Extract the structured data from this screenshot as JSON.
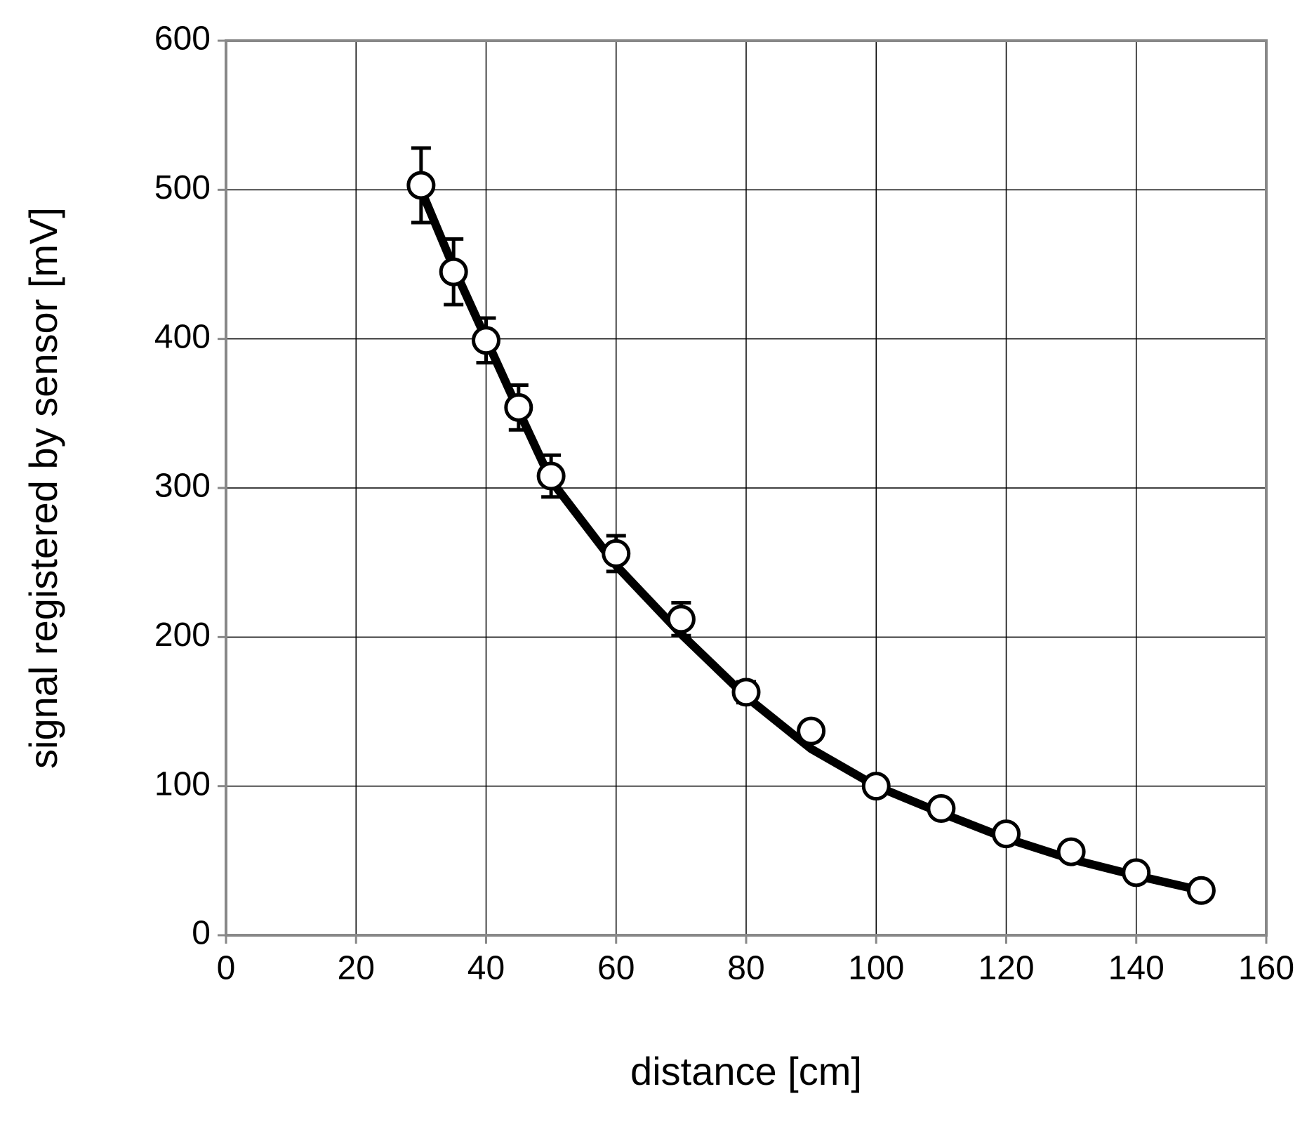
{
  "chart_data": {
    "type": "line",
    "x_label": "distance [cm]",
    "y_label": "signal registered by sensor [mV]",
    "x": [
      30,
      35,
      40,
      45,
      50,
      60,
      70,
      80,
      90,
      100,
      110,
      120,
      130,
      140,
      150
    ],
    "series": [
      {
        "color": "#000000",
        "style": "line",
        "values": [
          500,
          448,
          400,
          352,
          305,
          248,
          202,
          160,
          125,
          100,
          82,
          65,
          51,
          40,
          30
        ]
      },
      {
        "color": "#000000",
        "style": "marker",
        "values": [
          503,
          445,
          399,
          354,
          308,
          256,
          212,
          163,
          137,
          100,
          85,
          68,
          56,
          42,
          30
        ],
        "errors": [
          25,
          22,
          15,
          15,
          14,
          12,
          11,
          7,
          5,
          2,
          2,
          2,
          2,
          2,
          2
        ]
      }
    ],
    "xlim": [
      0,
      160
    ],
    "xticks": [
      0,
      20,
      40,
      60,
      80,
      100,
      120,
      140,
      160
    ],
    "ylim": [
      0,
      600
    ],
    "yticks": [
      0,
      100,
      200,
      300,
      400,
      500,
      600
    ],
    "grid": true
  }
}
